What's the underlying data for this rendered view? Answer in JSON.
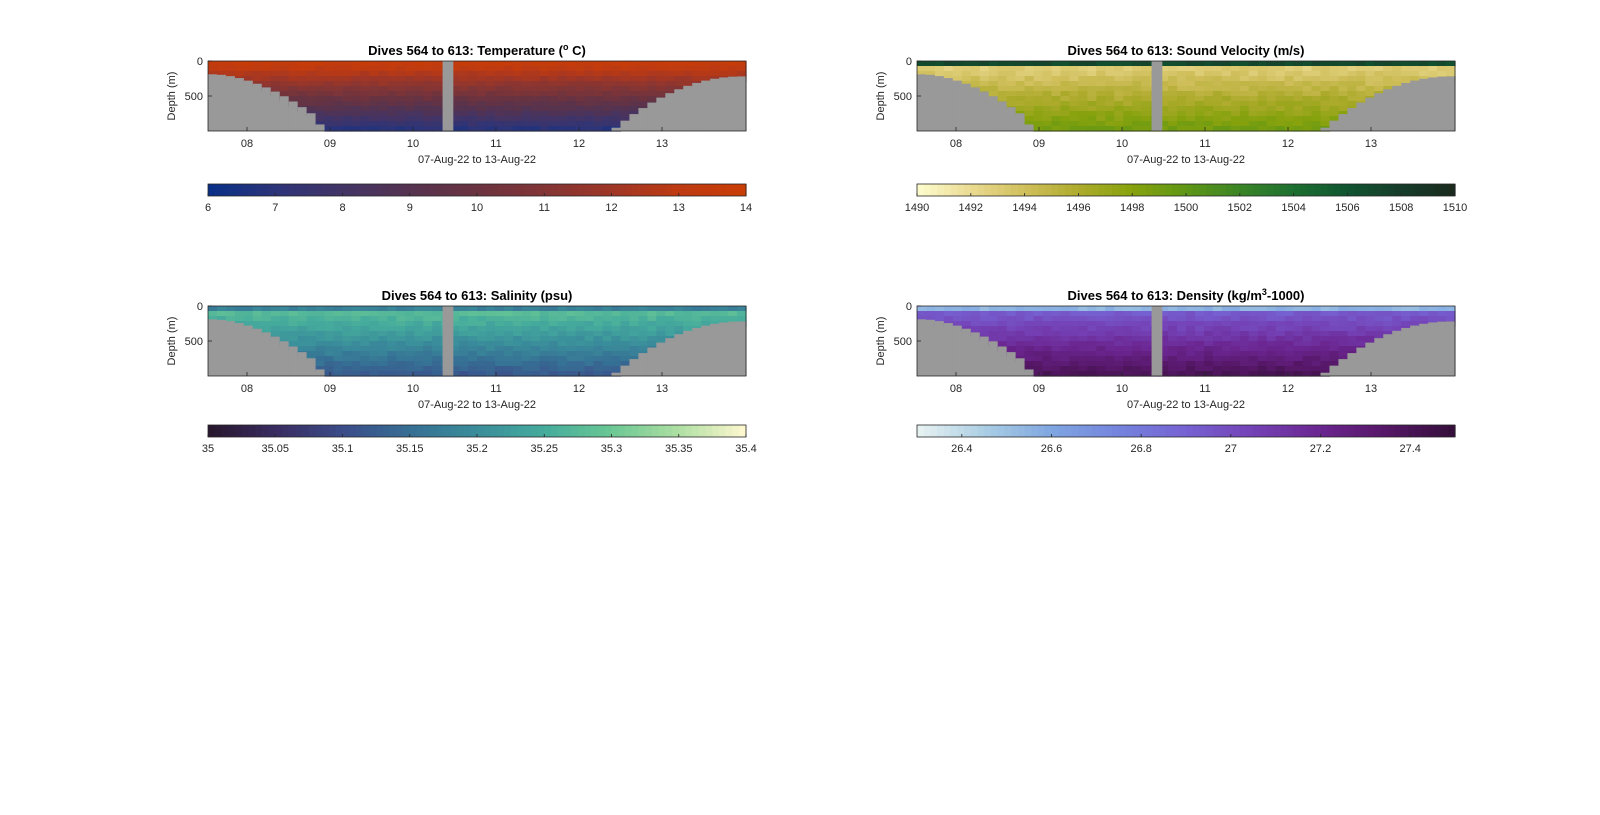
{
  "figure_background": "#ffffff",
  "terrain_color": "#999999",
  "chart_data": [
    {
      "type": "heatmap",
      "id": "temperature",
      "title_prefix": "Dives 564 to 613: Temperature (",
      "title_sup": "o",
      "title_suffix": " C)",
      "ylabel": "Depth (m)",
      "xlabel": "07-Aug-22 to 13-Aug-22",
      "x_ticks": [
        "08",
        "09",
        "10",
        "11",
        "12",
        "13"
      ],
      "y_ticks": [
        "0",
        "500"
      ],
      "ylim": [
        0,
        1000
      ],
      "y_reversed": true,
      "colorbar": {
        "ticks": [
          "6",
          "7",
          "8",
          "9",
          "10",
          "11",
          "12",
          "13",
          "14"
        ],
        "range": [
          6,
          14
        ],
        "colors": [
          "#0a2f86",
          "#2d3478",
          "#433465",
          "#55334f",
          "#6a3340",
          "#823535",
          "#9e3627",
          "#bd3a12",
          "#c93d06"
        ]
      }
    },
    {
      "type": "heatmap",
      "id": "sound_velocity",
      "title_prefix": "Dives 564 to 613: Sound Velocity (m/s)",
      "title_sup": "",
      "title_suffix": "",
      "ylabel": "Depth (m)",
      "xlabel": "07-Aug-22 to 13-Aug-22",
      "x_ticks": [
        "08",
        "09",
        "10",
        "11",
        "12",
        "13"
      ],
      "y_ticks": [
        "0",
        "500"
      ],
      "ylim": [
        0,
        1000
      ],
      "y_reversed": true,
      "colorbar": {
        "ticks": [
          "1490",
          "1492",
          "1494",
          "1496",
          "1498",
          "1500",
          "1502",
          "1504",
          "1506",
          "1508",
          "1510"
        ],
        "range": [
          1490,
          1510
        ],
        "colors": [
          "#fdfbcb",
          "#e9d98e",
          "#cfbe5a",
          "#acaa2b",
          "#86a20d",
          "#5f9616",
          "#3b8526",
          "#1d7030",
          "#105631",
          "#163d2a",
          "#1a2b1e"
        ]
      }
    },
    {
      "type": "heatmap",
      "id": "salinity",
      "title_prefix": "Dives 564 to 613: Salinity (psu)",
      "title_sup": "",
      "title_suffix": "",
      "ylabel": "Depth (m)",
      "xlabel": "07-Aug-22 to 13-Aug-22",
      "x_ticks": [
        "08",
        "09",
        "10",
        "11",
        "12",
        "13"
      ],
      "y_ticks": [
        "0",
        "500"
      ],
      "ylim": [
        0,
        1000
      ],
      "y_reversed": true,
      "colorbar": {
        "ticks": [
          "35",
          "35.05",
          "35.1",
          "35.15",
          "35.2",
          "35.25",
          "35.3",
          "35.35",
          "35.4"
        ],
        "range": [
          35,
          35.4
        ],
        "colors": [
          "#28172e",
          "#3a2d63",
          "#3b4d8a",
          "#366f94",
          "#3a8e9b",
          "#45ab9c",
          "#69c794",
          "#acdea1",
          "#fcf7cf"
        ]
      }
    },
    {
      "type": "heatmap",
      "id": "density",
      "title_prefix": "Dives 564 to 613: Density (kg/m",
      "title_sup": "3",
      "title_suffix": "-1000)",
      "ylabel": "Depth (m)",
      "xlabel": "07-Aug-22 to 13-Aug-22",
      "x_ticks": [
        "08",
        "09",
        "10",
        "11",
        "12",
        "13"
      ],
      "y_ticks": [
        "0",
        "500"
      ],
      "ylim": [
        0,
        1000
      ],
      "y_reversed": true,
      "colorbar": {
        "ticks": [
          "26.4",
          "26.6",
          "26.8",
          "27",
          "27.2",
          "27.4"
        ],
        "range": [
          26.3,
          27.5
        ],
        "colors": [
          "#e6f1f1",
          "#a9cde3",
          "#7ea5e1",
          "#7483dd",
          "#7662d2",
          "#7442b6",
          "#6b2691",
          "#561767",
          "#360f3c"
        ]
      }
    }
  ]
}
